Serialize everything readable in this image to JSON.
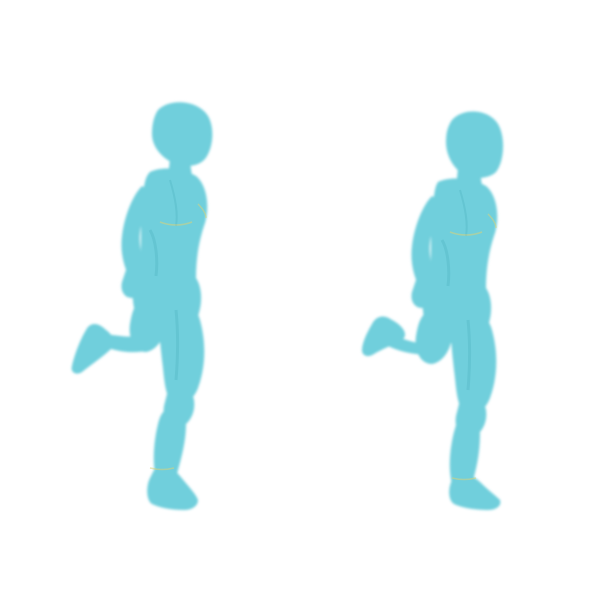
{
  "scene": {
    "background_color": "#ffffff",
    "figures": [
      {
        "name": "runner-figure-left",
        "body_color": "#6fcfdc",
        "shadow_color": "#4fb3c2",
        "highlight_color": "#d8d27a"
      },
      {
        "name": "runner-figure-right",
        "body_color": "#6fcfdc",
        "shadow_color": "#4fb3c2",
        "highlight_color": "#d8d27a"
      }
    ]
  }
}
